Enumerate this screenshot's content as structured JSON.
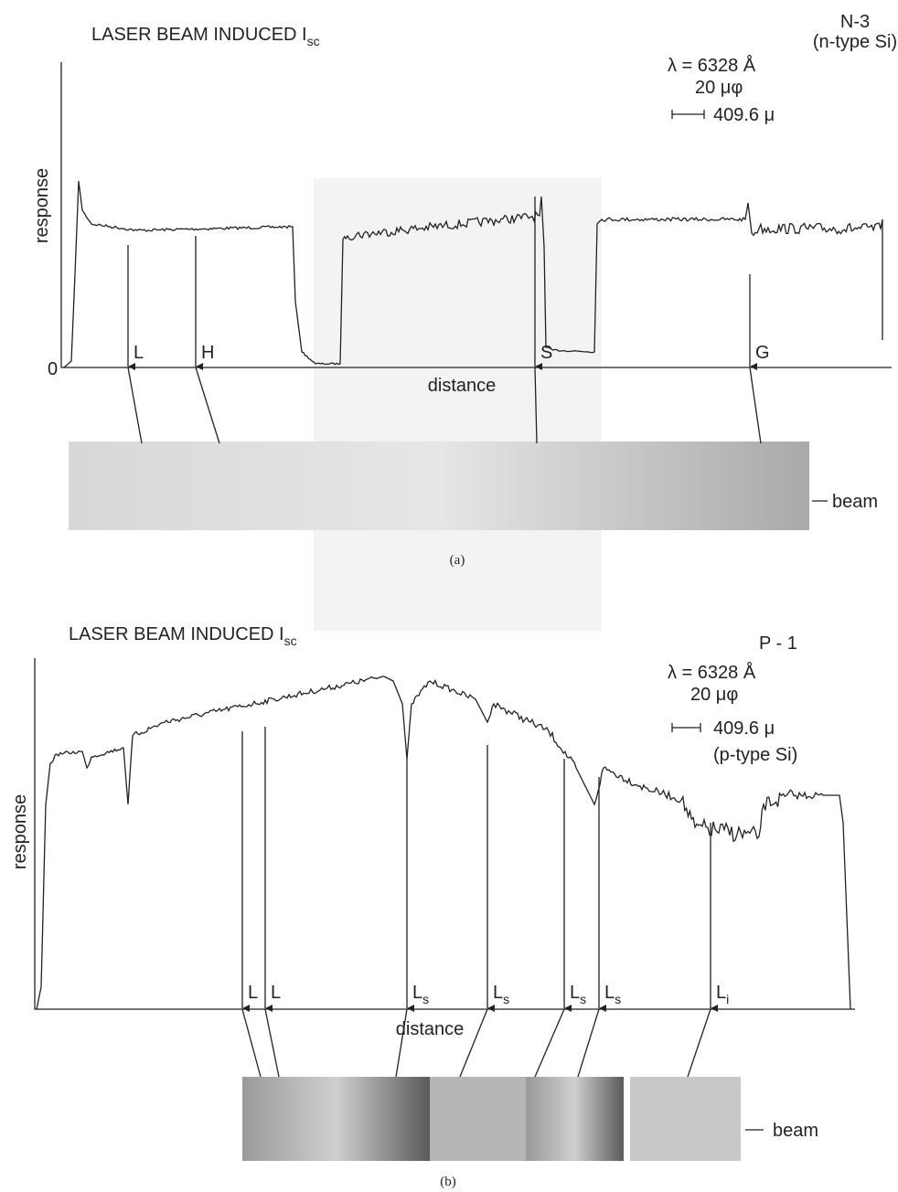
{
  "panel_a": {
    "title": {
      "text": "LASER BEAM INDUCED I",
      "sub": "sc"
    },
    "sample": "N-3",
    "sample_type": "(n-type Si)",
    "wavelength": "λ = 6328 Å",
    "spot": "20 μφ",
    "scale": "409.6 μ",
    "y_label": "response",
    "origin": "0",
    "x_label": "distance",
    "markers": [
      {
        "letter": "L"
      },
      {
        "letter": "H"
      },
      {
        "letter": "S"
      },
      {
        "letter": "G"
      }
    ],
    "beam_label": "beam",
    "caption": "(a)"
  },
  "panel_b": {
    "title": {
      "text": "LASER BEAM INDUCED I",
      "sub": "sc"
    },
    "sample": "P - 1",
    "wavelength": "λ = 6328 Å",
    "spot": "20 μφ",
    "scale": "409.6 μ",
    "sample_type": "(p-type Si)",
    "y_label": "response",
    "x_label": "distance",
    "markers": [
      {
        "letter": "L"
      },
      {
        "letter": "L"
      },
      {
        "letter": "L",
        "sub": "s"
      },
      {
        "letter": "L",
        "sub": "s"
      },
      {
        "letter": "L",
        "sub": "s"
      },
      {
        "letter": "L",
        "sub": "s"
      },
      {
        "letter": "L",
        "sub": "i"
      }
    ],
    "beam_label": "beam",
    "caption": "(b)"
  }
}
